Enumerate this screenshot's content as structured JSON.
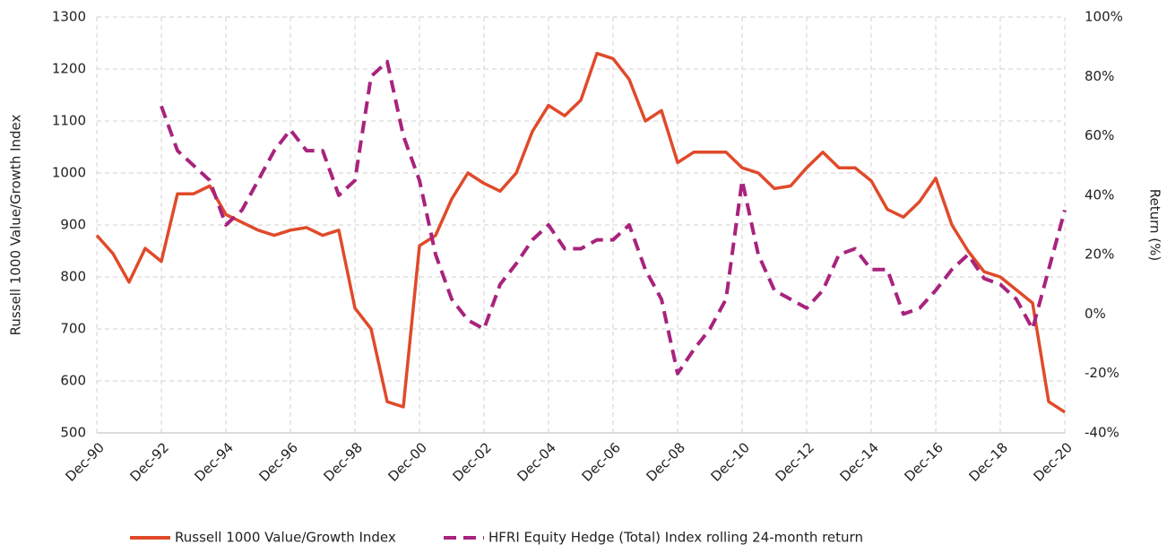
{
  "chart_data": {
    "type": "line",
    "categories": [
      "Dec-90",
      null,
      null,
      null,
      "Dec-92",
      null,
      null,
      null,
      "Dec-94",
      null,
      null,
      null,
      "Dec-96",
      null,
      null,
      null,
      "Dec-98",
      null,
      null,
      null,
      "Dec-00",
      null,
      null,
      null,
      "Dec-02",
      null,
      null,
      null,
      "Dec-04",
      null,
      null,
      null,
      "Dec-06",
      null,
      null,
      null,
      "Dec-08",
      null,
      null,
      null,
      "Dec-10",
      null,
      null,
      null,
      "Dec-12",
      null,
      null,
      null,
      "Dec-14",
      null,
      null,
      null,
      "Dec-16",
      null,
      null,
      null,
      "Dec-18",
      null,
      null,
      null,
      "Dec-20"
    ],
    "y_label": "Russell 1000 Value/Growth Index",
    "y2_label": "Return (%)",
    "ylim": [
      500,
      1300
    ],
    "yticks": [
      500,
      600,
      700,
      800,
      900,
      1000,
      1100,
      1200,
      1300
    ],
    "y2lim": [
      -40,
      100
    ],
    "y2ticks": [
      {
        "value": -40,
        "label": "-40%"
      },
      {
        "value": -20,
        "label": "-20%"
      },
      {
        "value": 0,
        "label": "0%"
      },
      {
        "value": 20,
        "label": "20%"
      },
      {
        "value": 40,
        "label": "40%"
      },
      {
        "value": 60,
        "label": "60%"
      },
      {
        "value": 80,
        "label": "80%"
      },
      {
        "value": 100,
        "label": "100%"
      }
    ],
    "grid": true,
    "legend": "bottom",
    "series": [
      {
        "name": "Russell 1000 Value/Growth Index",
        "color": "#e04a2a",
        "dash": false,
        "values": [
          880,
          845,
          790,
          855,
          830,
          960,
          960,
          975,
          920,
          905,
          890,
          880,
          890,
          895,
          880,
          890,
          740,
          700,
          560,
          550,
          860,
          880,
          950,
          1000,
          980,
          965,
          1000,
          1080,
          1130,
          1110,
          1140,
          1230,
          1220,
          1180,
          1100,
          1120,
          1020,
          1040,
          1040,
          1040,
          1010,
          1000,
          970,
          975,
          1010,
          1040,
          1010,
          1010,
          985,
          930,
          915,
          945,
          990,
          900,
          850,
          810,
          800,
          775,
          750,
          560,
          540
        ]
      },
      {
        "name": "HFRI Equity Hedge (Total) Index rolling 24-month return",
        "color": "#a8237e",
        "dash": true,
        "axis": "y2",
        "values": [
          null,
          null,
          null,
          null,
          70,
          55,
          50,
          45,
          30,
          35,
          45,
          55,
          62,
          55,
          55,
          40,
          45,
          80,
          85,
          60,
          45,
          20,
          5,
          -2,
          -5,
          10,
          17,
          25,
          30,
          22,
          22,
          25,
          25,
          30,
          15,
          5,
          -20,
          -12,
          -5,
          5,
          45,
          20,
          8,
          5,
          2,
          8,
          20,
          22,
          15,
          15,
          0,
          2,
          8,
          15,
          20,
          12,
          10,
          5,
          -5,
          15,
          35
        ]
      }
    ]
  }
}
